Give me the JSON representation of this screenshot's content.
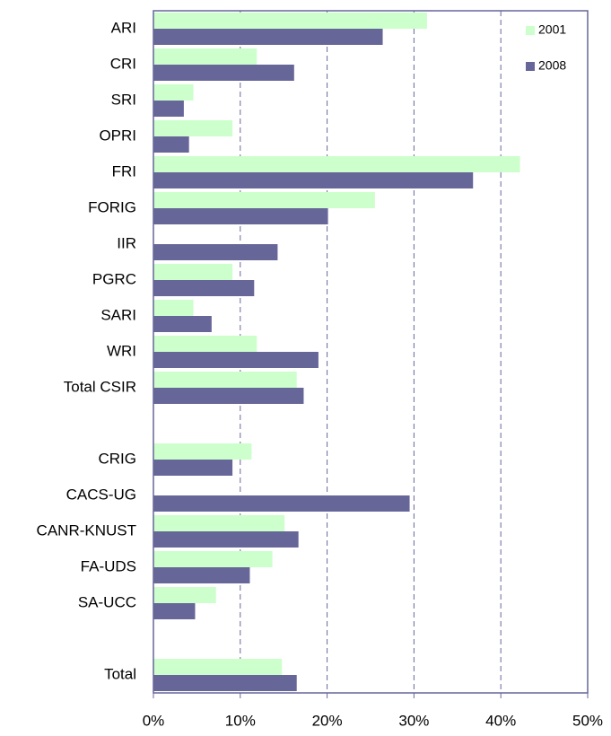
{
  "chart_data": {
    "type": "hbar",
    "categories": [
      "ARI",
      "CRI",
      "SRI",
      "OPRI",
      "FRI",
      "FORIG",
      "IIR",
      "PGRC",
      "SARI",
      "WRI",
      "Total CSIR",
      null,
      "CRIG",
      "CACS-UG",
      "CANR-KNUST",
      "FA-UDS",
      "SA-UCC",
      null,
      "Total"
    ],
    "series": [
      {
        "name": "2001",
        "color": "#ccffcc",
        "values": [
          31.5,
          11.9,
          4.6,
          9.1,
          42.2,
          25.5,
          0,
          9.1,
          4.6,
          11.9,
          16.5,
          null,
          11.3,
          0,
          15.1,
          13.7,
          7.2,
          null,
          14.8
        ]
      },
      {
        "name": "2008",
        "color": "#666699",
        "values": [
          26.4,
          16.2,
          3.5,
          4.1,
          36.8,
          20.1,
          14.3,
          11.6,
          6.7,
          19.0,
          17.3,
          null,
          9.1,
          29.5,
          16.7,
          11.1,
          4.8,
          null,
          16.5
        ]
      }
    ],
    "xlim": [
      0,
      50
    ],
    "xticks": [
      {
        "value": 0,
        "label": "0%"
      },
      {
        "value": 10,
        "label": "10%"
      },
      {
        "value": 20,
        "label": "20%"
      },
      {
        "value": 30,
        "label": "30%"
      },
      {
        "value": 40,
        "label": "40%"
      },
      {
        "value": 50,
        "label": "50%"
      }
    ],
    "grid": true,
    "legend": "top-right"
  }
}
